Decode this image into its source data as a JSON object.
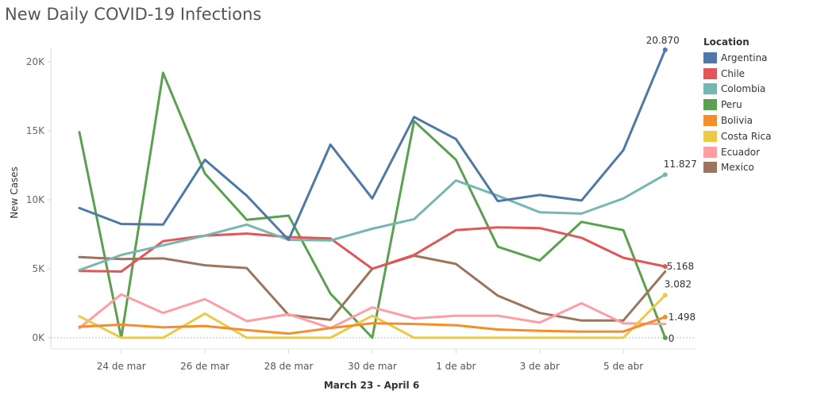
{
  "chart_data": {
    "type": "line",
    "title": "New Daily COVID-19 Infections",
    "xlabel": "March 23 - April 6",
    "ylabel": "New Cases",
    "ylim": [
      0,
      20000
    ],
    "yticks": [
      0,
      5000,
      10000,
      15000,
      20000
    ],
    "ytick_labels": [
      "0K",
      "5K",
      "10K",
      "15K",
      "20K"
    ],
    "x_count": 15,
    "xtick_indices": [
      1,
      3,
      5,
      7,
      9,
      11,
      13
    ],
    "xtick_labels": [
      "24 de mar",
      "26 de mar",
      "28 de mar",
      "30 de mar",
      "1 de abr",
      "3 de abr",
      "5 de abr"
    ],
    "legend": {
      "title": "Location",
      "placement": "right"
    },
    "gridlines": false,
    "zero_line": "dotted",
    "series": [
      {
        "name": "Argentina",
        "color": "#4e79a7",
        "values": [
          9400,
          8250,
          8200,
          12900,
          10300,
          7100,
          14000,
          10100,
          16000,
          14400,
          9900,
          10350,
          9950,
          13600,
          20870
        ],
        "end_label": "20.870"
      },
      {
        "name": "Chile",
        "color": "#e15759",
        "values": [
          4850,
          4800,
          7000,
          7400,
          7550,
          7300,
          7200,
          5000,
          6000,
          7800,
          8000,
          7950,
          7250,
          5800,
          5168
        ],
        "end_label": "5.168"
      },
      {
        "name": "Colombia",
        "color": "#76b7b2",
        "values": [
          4900,
          6000,
          6700,
          7400,
          8200,
          7100,
          7050,
          7900,
          8600,
          11400,
          10300,
          9100,
          9000,
          10100,
          11827
        ],
        "end_label": "11.827"
      },
      {
        "name": "Peru",
        "color": "#59a14f",
        "values": [
          14900,
          0,
          19200,
          11900,
          8550,
          8850,
          3200,
          0,
          15700,
          12900,
          6600,
          5600,
          8400,
          7800,
          0
        ],
        "end_label": "0"
      },
      {
        "name": "Bolivia",
        "color": "#f28e2b",
        "values": [
          800,
          950,
          750,
          850,
          550,
          300,
          700,
          1050,
          1000,
          900,
          600,
          500,
          450,
          450,
          1498
        ],
        "end_label": "1.498"
      },
      {
        "name": "Costa Rica",
        "color": "#edc948",
        "values": [
          1550,
          0,
          0,
          1750,
          0,
          0,
          0,
          1600,
          0,
          0,
          0,
          0,
          0,
          0,
          3082
        ],
        "end_label": "3.082"
      },
      {
        "name": "Ecuador",
        "color": "#ff9da7",
        "values": [
          700,
          3150,
          1800,
          2800,
          1200,
          1700,
          700,
          2200,
          1400,
          1600,
          1600,
          1100,
          2500,
          1050,
          1000
        ],
        "end_label": ""
      },
      {
        "name": "Mexico",
        "color": "#9c755f",
        "values": [
          5850,
          5700,
          5750,
          5250,
          5050,
          1650,
          1300,
          5000,
          5950,
          5350,
          3050,
          1800,
          1250,
          1250,
          4800
        ],
        "end_label": ""
      }
    ]
  }
}
